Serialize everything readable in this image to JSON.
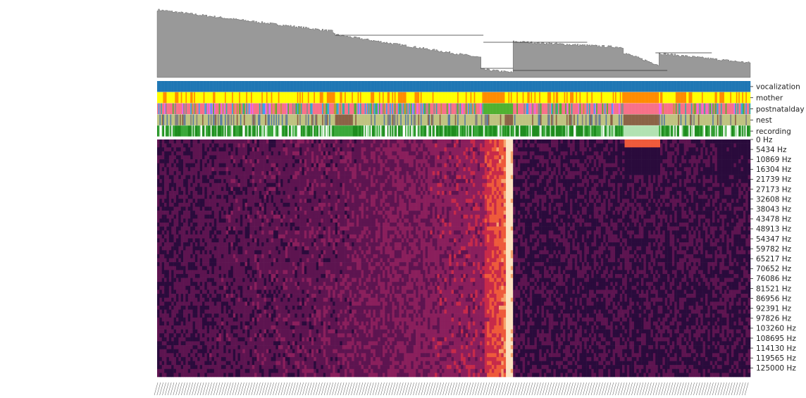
{
  "chart_data": {
    "type": "heatmap",
    "title": "",
    "xlabel": "",
    "ylabel": "",
    "row_annotations": [
      {
        "name": "vocalization",
        "colors": [
          "#1f77b4"
        ]
      },
      {
        "name": "mother",
        "colors": [
          "#ffff00",
          "#ff8c00"
        ]
      },
      {
        "name": "postnatalday",
        "colors": [
          "#f77189",
          "#bb9832",
          "#50b131",
          "#36ada4",
          "#3ba3ec",
          "#e866f4",
          "#8a8a8a"
        ]
      },
      {
        "name": "nest",
        "colors": [
          "#8b6346",
          "#bfc380",
          "#808080",
          "#5b7fa1"
        ]
      },
      {
        "name": "recording",
        "colors": [
          "#1e8c1e",
          "#3aa83a",
          "#b2e2b2",
          "#ffffff"
        ]
      }
    ],
    "y_tick_labels": [
      "0 Hz",
      "5434 Hz",
      "10869 Hz",
      "16304 Hz",
      "21739 Hz",
      "27173 Hz",
      "32608 Hz",
      "38043 Hz",
      "43478 Hz",
      "48913 Hz",
      "54347 Hz",
      "59782 Hz",
      "65217 Hz",
      "70652 Hz",
      "76086 Hz",
      "81521 Hz",
      "86956 Hz",
      "92391 Hz",
      "97826 Hz",
      "103260 Hz",
      "108695 Hz",
      "114130 Hz",
      "119565 Hz",
      "125000 Hz"
    ],
    "colormap": [
      "#2a0b3c",
      "#5d1450",
      "#8a1f5c",
      "#c72a4a",
      "#ee5a3b",
      "#f6a36c",
      "#fbe3c2"
    ],
    "dendrogram_color": "#999999",
    "colorbar": false
  }
}
